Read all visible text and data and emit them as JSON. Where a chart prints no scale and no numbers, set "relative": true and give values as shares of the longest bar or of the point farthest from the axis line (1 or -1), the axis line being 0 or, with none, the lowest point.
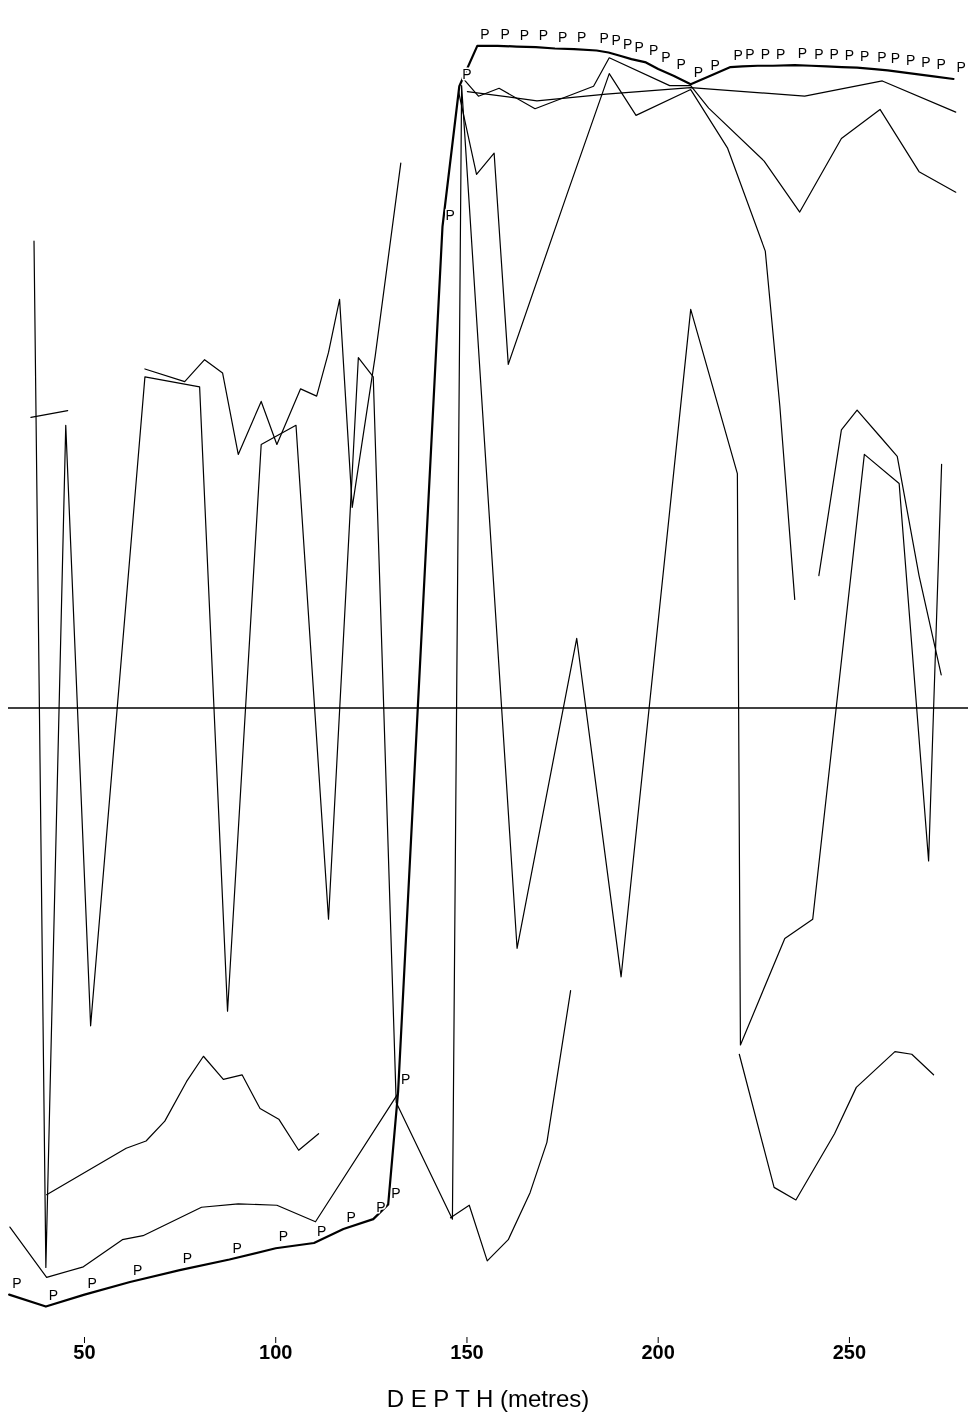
{
  "chart_data": {
    "type": "line",
    "relative": true,
    "xlabel": "D E P T H (metres)",
    "xlim": [
      30,
      281
    ],
    "xticks": [
      50,
      100,
      150,
      200,
      250
    ],
    "series": [
      {
        "name": "P",
        "color": "#000000",
        "x": [
          30.3,
          39.9,
          50,
          61.9,
          74.9,
          87.9,
          100,
          110,
          117.7,
          125.5,
          129.4,
          132,
          143.6,
          148,
          152.7,
          158,
          163,
          168,
          173,
          178,
          183.9,
          187,
          190,
          193,
          196.8,
          200,
          204,
          208.5,
          212.9,
          218.9,
          222,
          226,
          230,
          235.7,
          240,
          244,
          248,
          252,
          256.5,
          260,
          264,
          268,
          272,
          277.2
        ],
        "values": [
          -0.886,
          -0.904,
          -0.886,
          -0.867,
          -0.849,
          -0.833,
          -0.816,
          -0.808,
          -0.787,
          -0.772,
          -0.75,
          -0.579,
          0.727,
          0.939,
          1.0,
          1.0,
          0.999,
          0.998,
          0.996,
          0.995,
          0.993,
          0.99,
          0.985,
          0.98,
          0.975,
          0.965,
          0.955,
          0.942,
          0.953,
          0.968,
          0.969,
          0.97,
          0.97,
          0.971,
          0.97,
          0.969,
          0.968,
          0.967,
          0.965,
          0.963,
          0.96,
          0.957,
          0.954,
          0.95
        ]
      },
      {
        "color": "#000000",
        "x": [
          150.1,
          168.3,
          186.4,
          208.5,
          238.3,
          258.6,
          277.8
        ],
        "values": [
          0.931,
          0.917,
          0.927,
          0.937,
          0.924,
          0.947,
          0.9
        ]
      },
      {
        "color": "#000000",
        "x": [
          148.8,
          153.0,
          158.4,
          167.8,
          183.1,
          187.2,
          203.0,
          208.5,
          213.2,
          227.7,
          237.0,
          247.9,
          258.0,
          268.2,
          277.8
        ],
        "values": [
          0.952,
          0.924,
          0.936,
          0.905,
          0.939,
          0.982,
          0.94,
          0.94,
          0.906,
          0.826,
          0.749,
          0.86,
          0.904,
          0.81,
          0.779
        ]
      },
      {
        "color": "#000000",
        "x": [
          147.8,
          152.5,
          157.1,
          160.8,
          176.1,
          187.2,
          194.2,
          208.5,
          218.1,
          228.0,
          231.8,
          235.7
        ],
        "values": [
          0.931,
          0.806,
          0.838,
          0.519,
          0.775,
          0.958,
          0.895,
          0.934,
          0.846,
          0.69,
          0.456,
          0.164
        ]
      },
      {
        "color": "#000000",
        "x": [
          145.7,
          150.6,
          155.3,
          160.8,
          166.5,
          170.9,
          177.1
        ],
        "values": [
          -0.77,
          -0.751,
          -0.835,
          -0.803,
          -0.732,
          -0.656,
          -0.427
        ]
      },
      {
        "color": "#000000",
        "x": [
          221.2,
          230.3,
          236.0,
          246.1,
          251.8,
          261.9,
          266.3,
          272.0
        ],
        "values": [
          -0.523,
          -0.724,
          -0.743,
          -0.643,
          -0.573,
          -0.519,
          -0.523,
          -0.554
        ]
      },
      {
        "color": "#000000",
        "x": [
          36.8,
          39.9,
          45.1,
          51.6,
          65.8,
          80.1,
          87.4,
          96.2,
          105.3,
          113.8,
          121.6,
          125.5,
          131.5,
          146.2,
          148.6,
          163.1,
          178.7,
          190.3,
          208.5,
          220.7,
          221.5,
          233.1,
          240.4,
          253.9,
          263.0,
          270.7,
          274.1
        ],
        "values": [
          0.705,
          -0.845,
          0.427,
          -0.48,
          0.5,
          0.485,
          -0.458,
          0.398,
          0.427,
          -0.319,
          0.529,
          0.5,
          -0.596,
          -0.772,
          0.94,
          -0.363,
          0.105,
          -0.406,
          0.602,
          0.354,
          -0.509,
          -0.348,
          -0.319,
          0.383,
          0.339,
          -0.231,
          0.368
        ]
      },
      {
        "color": "#000000",
        "x": [
          30.5,
          40.1,
          49.7,
          59.9,
          65.3,
          80.6,
          90.2,
          100.3,
          110.4,
          132.0
        ],
        "values": [
          -0.784,
          -0.86,
          -0.844,
          -0.803,
          -0.797,
          -0.754,
          -0.749,
          -0.751,
          -0.776,
          -0.582
        ]
      },
      {
        "color": "#000000",
        "x": [
          40.1,
          60.9,
          66.1,
          71.0,
          76.7,
          81.1,
          86.3,
          91.2,
          95.9,
          100.8,
          106.0,
          111.2
        ],
        "values": [
          -0.735,
          -0.665,
          -0.654,
          -0.624,
          -0.564,
          -0.526,
          -0.561,
          -0.554,
          -0.605,
          -0.621,
          -0.668,
          -0.643
        ]
      },
      {
        "color": "#000000",
        "x": [
          65.8,
          76.2,
          81.4,
          86.1,
          90.2,
          96.2,
          100.3,
          106.5,
          110.7,
          113.8,
          116.7,
          120.0,
          126.0,
          132.7
        ],
        "values": [
          0.512,
          0.493,
          0.526,
          0.506,
          0.383,
          0.463,
          0.398,
          0.482,
          0.471,
          0.537,
          0.617,
          0.303,
          0.531,
          0.823
        ]
      },
      {
        "color": "#000000",
        "x": [
          36.0,
          45.6
        ],
        "values": [
          0.439,
          0.449
        ]
      },
      {
        "color": "#000000",
        "x": [
          242.0,
          247.9,
          252.0,
          258.0,
          262.5,
          268.2,
          274.0
        ],
        "values": [
          0.2,
          0.42,
          0.45,
          0.41,
          0.38,
          0.2,
          0.05
        ]
      }
    ]
  }
}
